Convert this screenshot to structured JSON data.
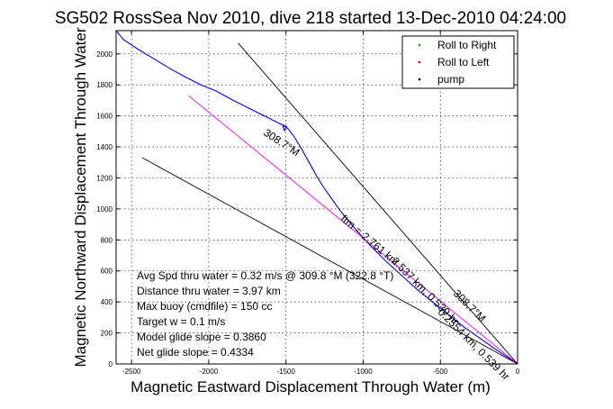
{
  "chart_data": {
    "type": "line",
    "title": "SG502 RossSea Nov 2010, dive 218 started 13-Dec-2010 04:24:00",
    "xlabel": "Magnetic Eastward Displacement Through Water (m)",
    "ylabel": "Magnetic Northward Displacement Through Water",
    "xlim": [
      -2600,
      0
    ],
    "ylim": [
      0,
      2150
    ],
    "xticks": [
      -2500,
      -2000,
      -1500,
      -1000,
      -500,
      0
    ],
    "yticks": [
      0,
      200,
      400,
      600,
      800,
      1000,
      1200,
      1400,
      1600,
      1800,
      2000
    ],
    "grid": true,
    "legend_position": "top-right",
    "legend": [
      {
        "label": "Roll to Right",
        "color": "#00a000",
        "marker": "dot"
      },
      {
        "label": "Roll to Left",
        "color": "#ff0000",
        "marker": "dot"
      },
      {
        "label": "pump",
        "color": "#000000",
        "marker": "dot"
      }
    ],
    "series": [
      {
        "color": "#0000ff",
        "x": [
          0,
          -60,
          -150,
          -250,
          -350,
          -450,
          -550,
          -650,
          -750,
          -850,
          -950,
          -1050,
          -1100,
          -1150,
          -1200,
          -1250,
          -1300,
          -1350,
          -1400,
          -1450,
          -1480,
          -1500,
          -1520,
          -1510,
          -1495,
          -1550,
          -1650,
          -1750,
          -1850,
          -1950,
          -2050,
          -2150,
          -2250,
          -2350,
          -2450,
          -2550,
          -2600
        ],
        "y": [
          0,
          40,
          100,
          170,
          240,
          320,
          400,
          480,
          570,
          660,
          760,
          870,
          930,
          990,
          1060,
          1130,
          1210,
          1300,
          1390,
          1470,
          1510,
          1530,
          1535,
          1505,
          1530,
          1555,
          1605,
          1655,
          1705,
          1760,
          1800,
          1850,
          1905,
          1965,
          2025,
          2090,
          2150
        ]
      },
      {
        "color": "#ff00ff",
        "x": [
          0,
          -2130
        ],
        "y": [
          0,
          1730
        ]
      },
      {
        "color": "#000000",
        "x": [
          0,
          -2430
        ],
        "y": [
          0,
          1330
        ]
      },
      {
        "color": "#000000",
        "x": [
          0,
          -1810
        ],
        "y": [
          0,
          2070
        ]
      }
    ],
    "annotations": [
      "Avg Spd thru water =  0.32 m/s @ 309.8 °M (322.8 °T)",
      "Distance thru water =  3.97 km",
      "Max buoy (cmdfile) = 150 cc",
      "Target w = 0.1 m/s",
      "Model glide slope = 0.3860",
      "Net glide slope = 0.4334"
    ],
    "line_labels": [
      {
        "text": "308.7°M",
        "x": -1650,
        "y": 1480,
        "angle": 33
      },
      {
        "text": "ftm = 2.761 km",
        "x": -1150,
        "y": 930,
        "angle": 40
      },
      {
        "text": "2.537 km, 0.539 hr",
        "x": -820,
        "y": 660,
        "angle": 45
      },
      {
        "text": "0.2554 km, 0.539 hr",
        "x": -520,
        "y": 330,
        "angle": 45
      },
      {
        "text": "308.7°M",
        "x": -420,
        "y": 450,
        "angle": 45
      }
    ]
  }
}
